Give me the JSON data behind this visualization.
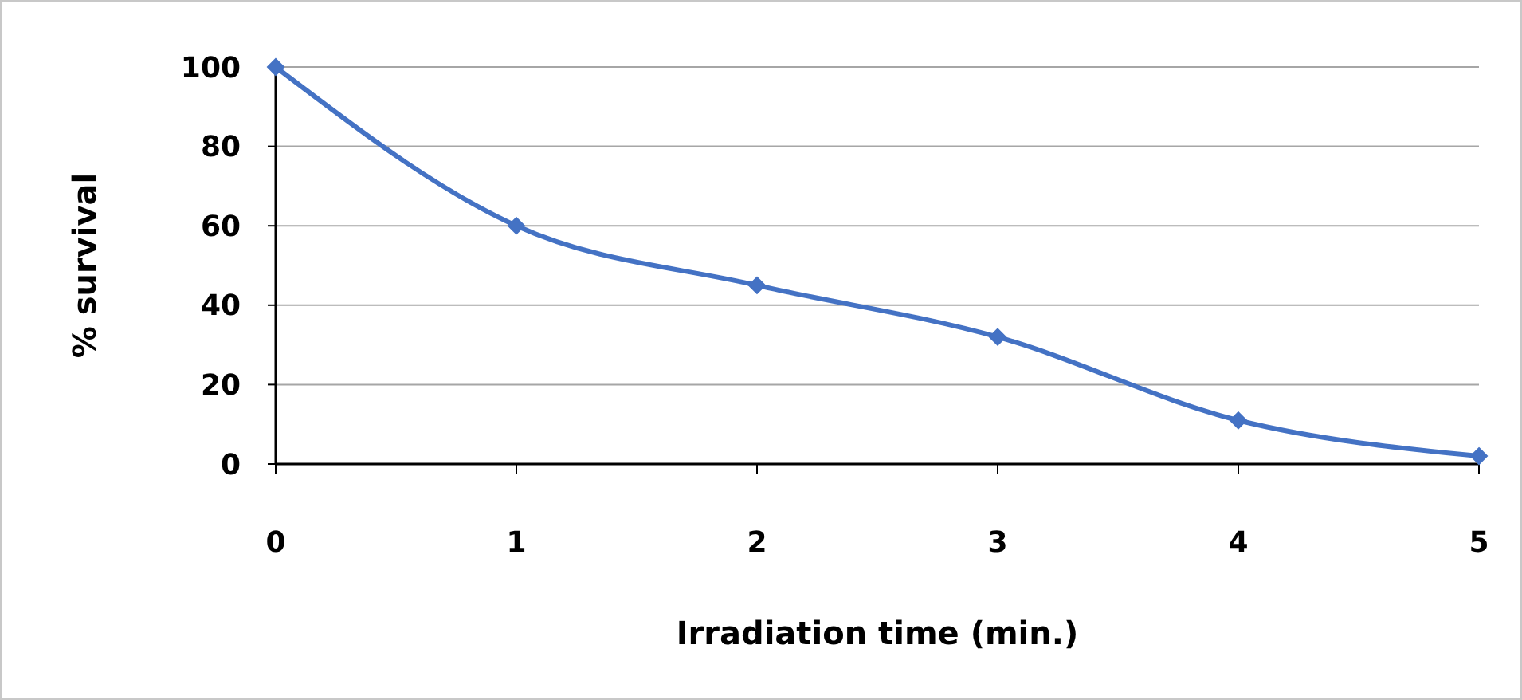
{
  "chart_data": {
    "type": "line",
    "xlabel": "Irradiation time (min.)",
    "ylabel": "% survival",
    "x": [
      0,
      1,
      2,
      3,
      4,
      5
    ],
    "series": [
      {
        "color": "#4472c4",
        "values": [
          100,
          60,
          45,
          32,
          11,
          2
        ]
      }
    ],
    "xlim": [
      0,
      5
    ],
    "xticks": [
      0,
      1,
      2,
      3,
      4,
      5
    ],
    "ylim": [
      0,
      100
    ],
    "yticks": [
      0,
      20,
      40,
      60,
      80,
      100
    ],
    "grid": "y",
    "marker": "diamond",
    "line_style": "solid"
  }
}
